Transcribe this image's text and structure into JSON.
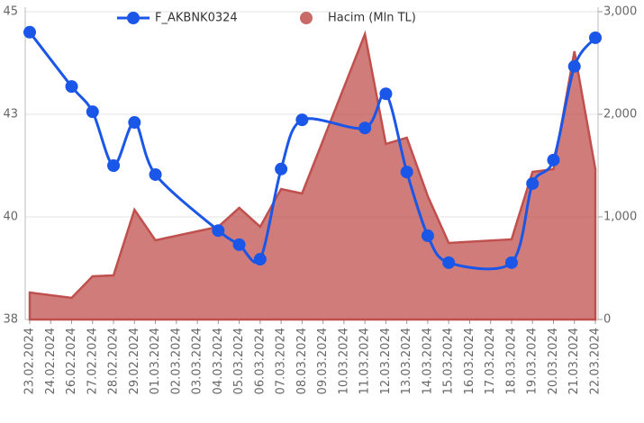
{
  "chart_data": {
    "type": "line-area",
    "categories": [
      "23.02.2024",
      "24.02.2024",
      "26.02.2024",
      "27.02.2024",
      "28.02.2024",
      "29.02.2024",
      "01.03.2024",
      "02.03.2024",
      "03.03.2024",
      "04.03.2024",
      "05.03.2024",
      "06.03.2024",
      "07.03.2024",
      "08.03.2024",
      "09.03.2024",
      "10.03.2024",
      "11.03.2024",
      "12.03.2024",
      "13.03.2024",
      "14.03.2024",
      "15.03.2024",
      "16.03.2024",
      "17.03.2024",
      "18.03.2024",
      "19.03.2024",
      "20.03.2024",
      "21.03.2024",
      "22.03.2024"
    ],
    "series": [
      {
        "name": "F_AKBNK0324",
        "type": "line",
        "color": "#1a56e8",
        "x": [
          "23.02.2024",
          "26.02.2024",
          "27.02.2024",
          "28.02.2024",
          "29.02.2024",
          "01.03.2024",
          "04.03.2024",
          "05.03.2024",
          "06.03.2024",
          "07.03.2024",
          "08.03.2024",
          "11.03.2024",
          "12.03.2024",
          "13.03.2024",
          "14.03.2024",
          "15.03.2024",
          "18.03.2024",
          "19.03.2024",
          "20.03.2024",
          "21.03.2024",
          "22.03.2024"
        ],
        "values": [
          44.52,
          43.25,
          42.66,
          41.4,
          42.41,
          41.19,
          39.88,
          39.55,
          39.21,
          41.32,
          42.47,
          42.28,
          43.08,
          41.25,
          39.76,
          39.13,
          39.13,
          40.98,
          41.53,
          43.72,
          44.39
        ]
      },
      {
        "name": "Hacim (Mln TL)",
        "type": "area",
        "color": "#c0504d",
        "axis": "y2",
        "x": [
          "23.02.2024",
          "26.02.2024",
          "27.02.2024",
          "28.02.2024",
          "29.02.2024",
          "01.03.2024",
          "04.03.2024",
          "05.03.2024",
          "06.03.2024",
          "07.03.2024",
          "08.03.2024",
          "11.03.2024",
          "12.03.2024",
          "13.03.2024",
          "14.03.2024",
          "15.03.2024",
          "18.03.2024",
          "19.03.2024",
          "20.03.2024",
          "21.03.2024",
          "22.03.2024"
        ],
        "values": [
          263,
          211,
          421,
          430,
          1070,
          772,
          904,
          1088,
          904,
          1272,
          1228,
          2781,
          1711,
          1772,
          1202,
          746,
          781,
          1439,
          1465,
          2614,
          1465
        ]
      }
    ],
    "ylim": [
      37.8,
      45
    ],
    "yticks": [
      {
        "value": 37.8,
        "label": "38"
      },
      {
        "value": 40.2,
        "label": "40"
      },
      {
        "value": 42.6,
        "label": "43"
      },
      {
        "value": 45,
        "label": "45"
      }
    ],
    "y2lim": [
      0,
      3000
    ],
    "y2ticks": [
      0,
      {
        "value": 1000,
        "label": "1,000"
      },
      {
        "value": 2000,
        "label": "2,000"
      },
      {
        "value": 3000,
        "label": "3,000"
      }
    ],
    "grid": true,
    "legend": "top"
  }
}
